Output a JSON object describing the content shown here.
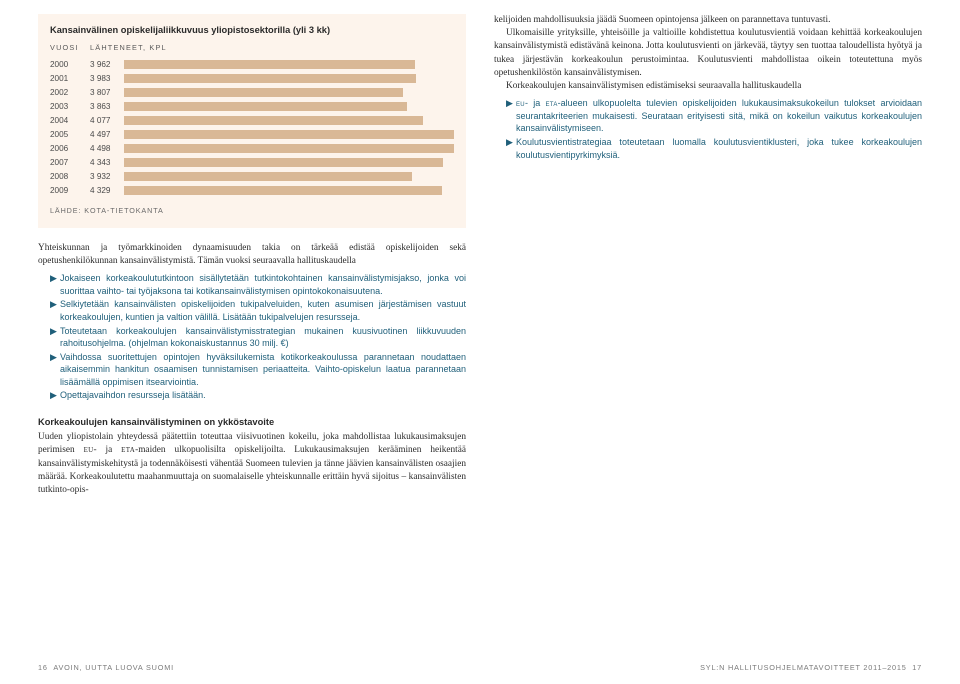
{
  "chart": {
    "type": "bar",
    "title": "Kansainvälinen opiskelijaliikkuvuus yliopistosektorilla (yli 3 kk)",
    "header_year": "VUOSI",
    "header_val": "LÄHTENEET, KPL",
    "rows": [
      {
        "year": "2000",
        "val": "3 962",
        "n": 3962
      },
      {
        "year": "2001",
        "val": "3 983",
        "n": 3983
      },
      {
        "year": "2002",
        "val": "3 807",
        "n": 3807
      },
      {
        "year": "2003",
        "val": "3 863",
        "n": 3863
      },
      {
        "year": "2004",
        "val": "4 077",
        "n": 4077
      },
      {
        "year": "2005",
        "val": "4 497",
        "n": 4497
      },
      {
        "year": "2006",
        "val": "4 498",
        "n": 4498
      },
      {
        "year": "2007",
        "val": "4 343",
        "n": 4343
      },
      {
        "year": "2008",
        "val": "3 932",
        "n": 3932
      },
      {
        "year": "2009",
        "val": "4 329",
        "n": 4329
      }
    ],
    "max": 4498,
    "bar_color": "#d9b896",
    "bg_color": "#fdf4ec",
    "source": "LÄHDE: KOTA-TIETOKANTA"
  },
  "col1": {
    "p1": "Yhteiskunnan ja työmarkkinoiden dynaamisuuden takia on tärkeää edistää opiskelijoiden sekä opetushenkilökunnan kansainvälistymistä. Tämän vuoksi seuraavalla hallituskaudella",
    "b": [
      "Jokaiseen korkeakoulututkintoon sisällytetään tutkintokohtainen kansainvälistymisjakso, jonka voi suorittaa vaihto- tai työjaksona tai kotikansainvälistymisen opintokokonaisuutena.",
      "Selkiytetään kansainvälisten opiskelijoiden tukipalveluiden, kuten asumisen järjestämisen vastuut korkeakoulujen, kuntien ja valtion välillä. Lisätään tukipalvelujen resursseja.",
      "Toteutetaan korkeakoulujen kansainvälistymisstrategian mukainen kuusivuotinen liikkuvuuden rahoitusohjelma. (ohjelman kokonaiskustannus 30 milj. €)",
      "Vaihdossa suoritettujen opintojen hyväksilukemista kotikorkeakoulussa parannetaan noudattaen aikaisemmin hankitun osaamisen tunnistamisen periaatteita. Vaihto-opiskelun laatua parannetaan lisäämällä oppimisen itsearviointia.",
      "Opettajavaihdon resursseja lisätään."
    ],
    "h2": "Korkeakoulujen kansainvälistyminen on ykköstavoite",
    "p2a": "Uuden yliopistolain yhteydessä päätettiin toteuttaa viisivuotinen kokeilu, joka mahdollistaa lukukausimaksujen perimisen ",
    "p2b": "- ja ",
    "p2c": "-maiden ulkopuolisilta opiskelijoilta. Lukukausimaksujen kerääminen heikentää kansainvälistymiskehitystä ja todennäköisesti vähentää Suomeen tulevien ja tänne jäävien kansainvälisten osaajien määrää. Korkeakoulutettu maahanmuuttaja on suomalaiselle yhteiskunnalle erittäin hyvä sijoitus – kansainvälisten tutkinto-opis-",
    "eu": "eu",
    "eta": "eta"
  },
  "col2": {
    "p1": "kelijoiden mahdollisuuksia jäädä Suomeen opintojensa jälkeen on parannettava tuntuvasti.",
    "p2": "Ulkomaisille yrityksille, yhteisöille ja valtioille kohdistettua koulutusvientiä voidaan kehittää korkeakoulujen kansainvälistymistä edistävänä keinona. Jotta koulutusvienti on järkevää, täytyy sen tuottaa taloudellista hyötyä ja tukea järjestävän korkeakoulun perustoimintaa. Koulutusvienti mahdollistaa oikein toteutettuna myös opetushenkilöstön kansainvälistymisen.",
    "p3": "Korkeakoulujen kansainvälistymisen edistämiseksi seuraavalla hallituskaudella",
    "b1a": "- ja ",
    "b1b": "-alueen ulkopuolelta tulevien opiskelijoiden lukukausimaksukokeilun tulokset arvioidaan seurantakriteerien mukaisesti. Seurataan erityisesti sitä, mikä on kokeilun vaikutus korkeakoulujen kansainvälistymiseen.",
    "b2": "Koulutusvientistrategiaa toteutetaan luomalla koulutusvientiklusteri, joka tukee korkeakoulujen koulutusvientipyrkimyksiä.",
    "eu": "eu",
    "eta": "eta"
  },
  "footer": {
    "left_num": "16",
    "left_text": "AVOIN, UUTTA LUOVA SUOMI",
    "right_text": "SYL:N HALLITUSOHJELMATAVOITTEET 2011–2015",
    "right_num": "17"
  }
}
